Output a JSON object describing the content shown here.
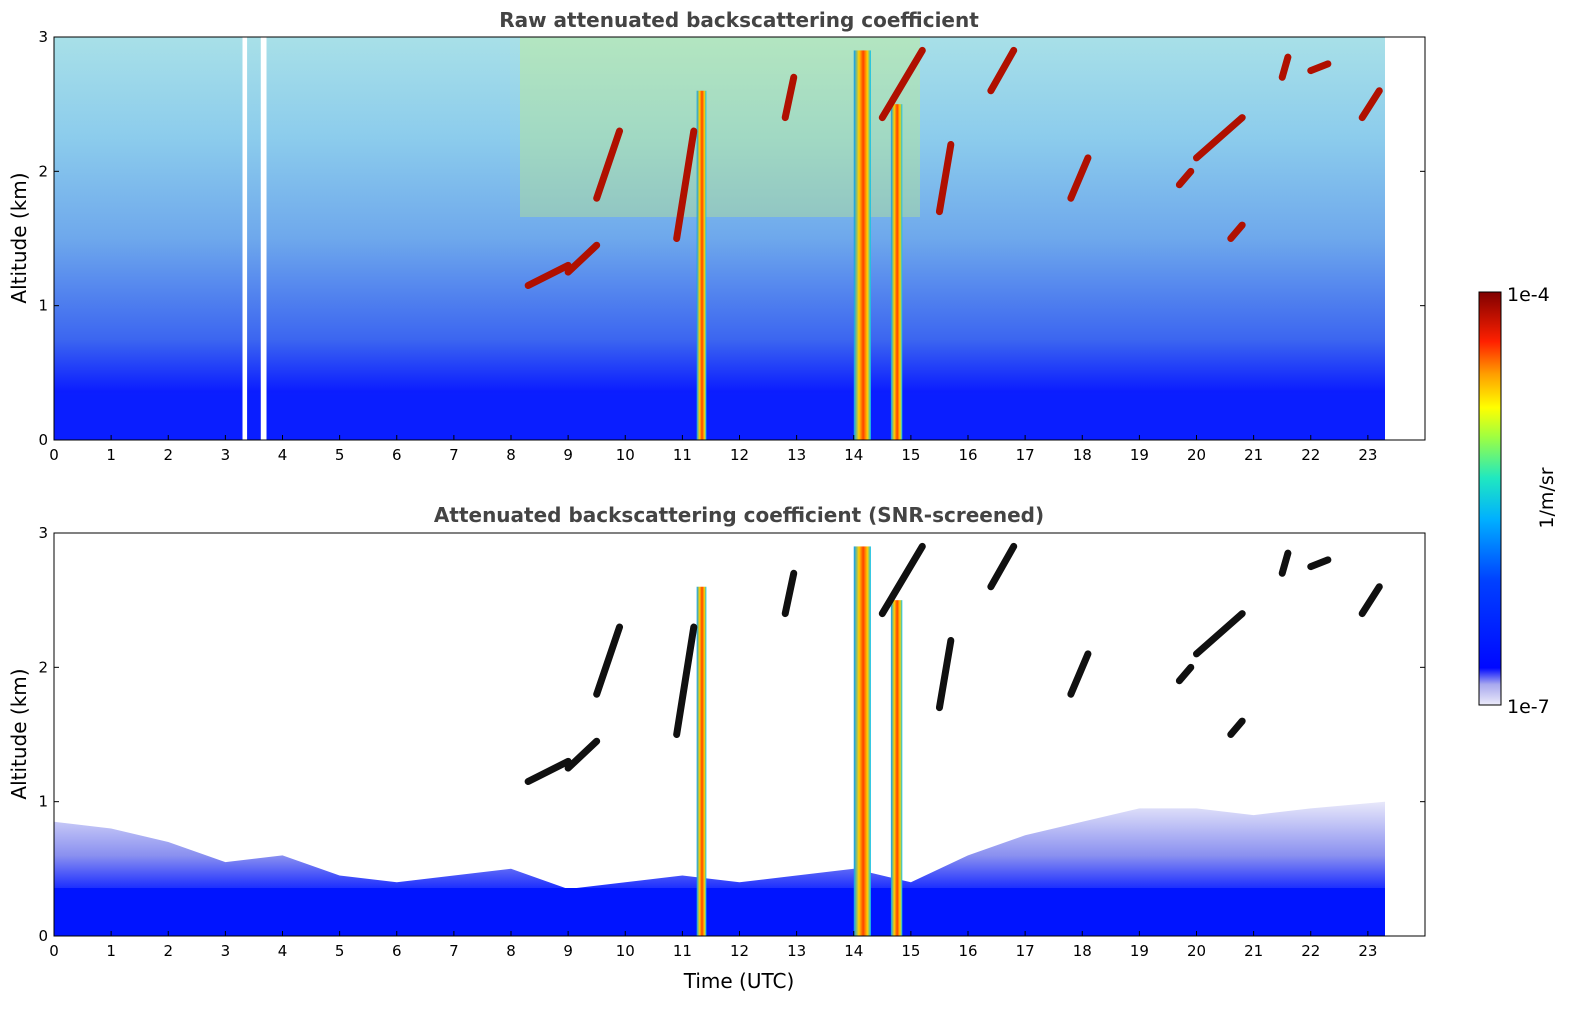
{
  "chart_data": [
    {
      "type": "heatmap",
      "title": "Raw attenuated backscattering coefficient",
      "xlabel": "",
      "ylabel": "Altitude (km)",
      "xlim": [
        0,
        24
      ],
      "ylim": [
        0,
        3
      ],
      "x_ticks": [
        "0",
        "1",
        "2",
        "3",
        "4",
        "5",
        "6",
        "7",
        "8",
        "9",
        "10",
        "11",
        "12",
        "13",
        "14",
        "15",
        "16",
        "17",
        "18",
        "19",
        "20",
        "21",
        "22",
        "23"
      ],
      "y_ticks": [
        "0",
        "1",
        "2",
        "3"
      ],
      "data_end_time": 23.3,
      "features": [
        {
          "kind": "column",
          "t0": 11.25,
          "t1": 11.42,
          "top": 2.6
        },
        {
          "kind": "column",
          "t0": 14.0,
          "t1": 14.3,
          "top": 2.9
        },
        {
          "kind": "column",
          "t0": 14.65,
          "t1": 14.85,
          "top": 2.5
        }
      ],
      "gaps": [
        [
          3.3,
          3.38
        ],
        [
          3.62,
          3.72
        ]
      ]
    },
    {
      "type": "heatmap",
      "title": "Attenuated backscattering coefficient (SNR-screened)",
      "xlabel": "Time (UTC)",
      "ylabel": "Altitude (km)",
      "xlim": [
        0,
        24
      ],
      "ylim": [
        0,
        3
      ],
      "x_ticks": [
        "0",
        "1",
        "2",
        "3",
        "4",
        "5",
        "6",
        "7",
        "8",
        "9",
        "10",
        "11",
        "12",
        "13",
        "14",
        "15",
        "16",
        "17",
        "18",
        "19",
        "20",
        "21",
        "22",
        "23"
      ],
      "y_ticks": [
        "0",
        "1",
        "2",
        "3"
      ],
      "data_end_time": 23.3,
      "features": [
        {
          "kind": "column",
          "t0": 11.25,
          "t1": 11.42,
          "top": 2.6
        },
        {
          "kind": "column",
          "t0": 14.0,
          "t1": 14.3,
          "top": 2.9
        },
        {
          "kind": "column",
          "t0": 14.65,
          "t1": 14.85,
          "top": 2.5
        }
      ]
    }
  ],
  "colorbar": {
    "label": "1/m/sr",
    "min_label": "1e-7",
    "max_label": "1e-4",
    "colors": [
      "#e8e8f8",
      "#b0b0f0",
      "#0010ff",
      "#0080ff",
      "#00e0e0",
      "#40ff80",
      "#ffff00",
      "#ff8000",
      "#ff0000",
      "#800000"
    ]
  }
}
